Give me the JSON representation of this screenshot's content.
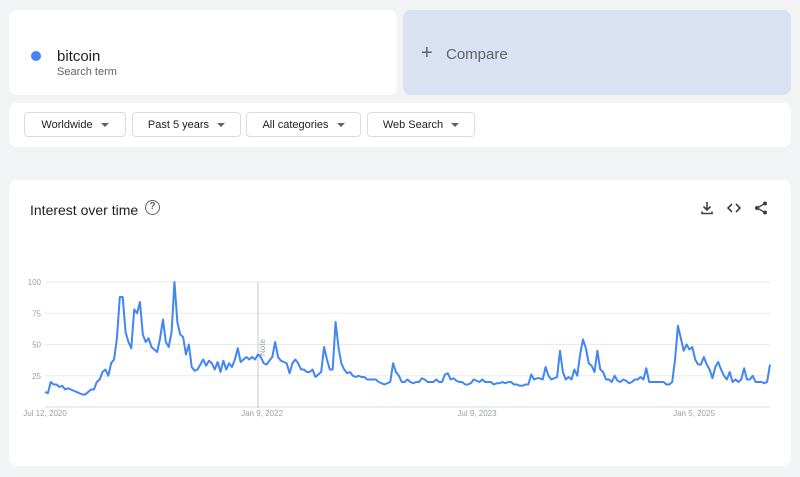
{
  "term": {
    "name": "bitcoin",
    "subtitle": "Search term",
    "color": "#4285f4"
  },
  "compare": {
    "label": "Compare"
  },
  "filters": {
    "region": "Worldwide",
    "period": "Past 5 years",
    "category": "All categories",
    "property": "Web Search"
  },
  "chart": {
    "title": "Interest over time",
    "note": "Note"
  },
  "chart_data": {
    "type": "line",
    "title": "Interest over time",
    "xlabel": "",
    "ylabel": "",
    "ylim": [
      0,
      100
    ],
    "grid": true,
    "y_ticks": [
      25,
      50,
      75,
      100
    ],
    "x_tick_labels": [
      "Jul 12, 2020",
      "Jan 9, 2022",
      "Jul 9, 2023",
      "Jan 5, 2025"
    ],
    "series": [
      {
        "name": "bitcoin",
        "color": "#4285f4",
        "values": [
          12,
          11,
          20,
          18,
          18,
          16,
          17,
          14,
          15,
          14,
          13,
          12,
          11,
          10,
          10,
          12,
          14,
          14,
          20,
          22,
          28,
          30,
          25,
          35,
          38,
          55,
          88,
          88,
          60,
          52,
          47,
          78,
          75,
          84,
          58,
          52,
          55,
          48,
          46,
          44,
          55,
          70,
          52,
          48,
          60,
          100,
          68,
          58,
          56,
          42,
          50,
          32,
          29,
          30,
          34,
          38,
          33,
          37,
          35,
          30,
          36,
          28,
          37,
          30,
          35,
          32,
          38,
          47,
          36,
          38,
          40,
          38,
          40,
          38,
          42,
          40,
          35,
          34,
          37,
          40,
          52,
          40,
          37,
          36,
          35,
          27,
          35,
          38,
          35,
          30,
          30,
          28,
          28,
          30,
          24,
          26,
          28,
          48,
          38,
          30,
          30,
          68,
          48,
          35,
          30,
          27,
          28,
          25,
          24,
          25,
          24,
          24,
          22,
          22,
          22,
          22,
          20,
          19,
          18,
          19,
          20,
          35,
          28,
          25,
          20,
          20,
          22,
          20,
          19,
          20,
          20,
          23,
          22,
          20,
          20,
          20,
          22,
          20,
          20,
          26,
          27,
          22,
          23,
          21,
          20,
          20,
          18,
          18,
          19,
          22,
          21,
          20,
          22,
          20,
          20,
          20,
          18,
          19,
          19,
          20,
          19,
          20,
          20,
          18,
          18,
          17,
          17,
          18,
          18,
          26,
          22,
          23,
          23,
          22,
          32,
          25,
          22,
          23,
          24,
          45,
          28,
          22,
          24,
          22,
          30,
          25,
          42,
          54,
          47,
          35,
          33,
          28,
          45,
          30,
          28,
          22,
          22,
          20,
          25,
          21,
          20,
          22,
          21,
          19,
          20,
          22,
          22,
          24,
          22,
          31,
          20,
          20,
          20,
          20,
          20,
          20,
          18,
          18,
          20,
          38,
          65,
          55,
          45,
          50,
          46,
          48,
          38,
          34,
          34,
          40,
          34,
          30,
          23,
          32,
          36,
          30,
          25,
          22,
          28,
          20,
          22,
          20,
          22,
          31,
          22,
          22,
          25,
          20,
          20,
          20,
          19,
          20,
          34
        ]
      }
    ]
  }
}
